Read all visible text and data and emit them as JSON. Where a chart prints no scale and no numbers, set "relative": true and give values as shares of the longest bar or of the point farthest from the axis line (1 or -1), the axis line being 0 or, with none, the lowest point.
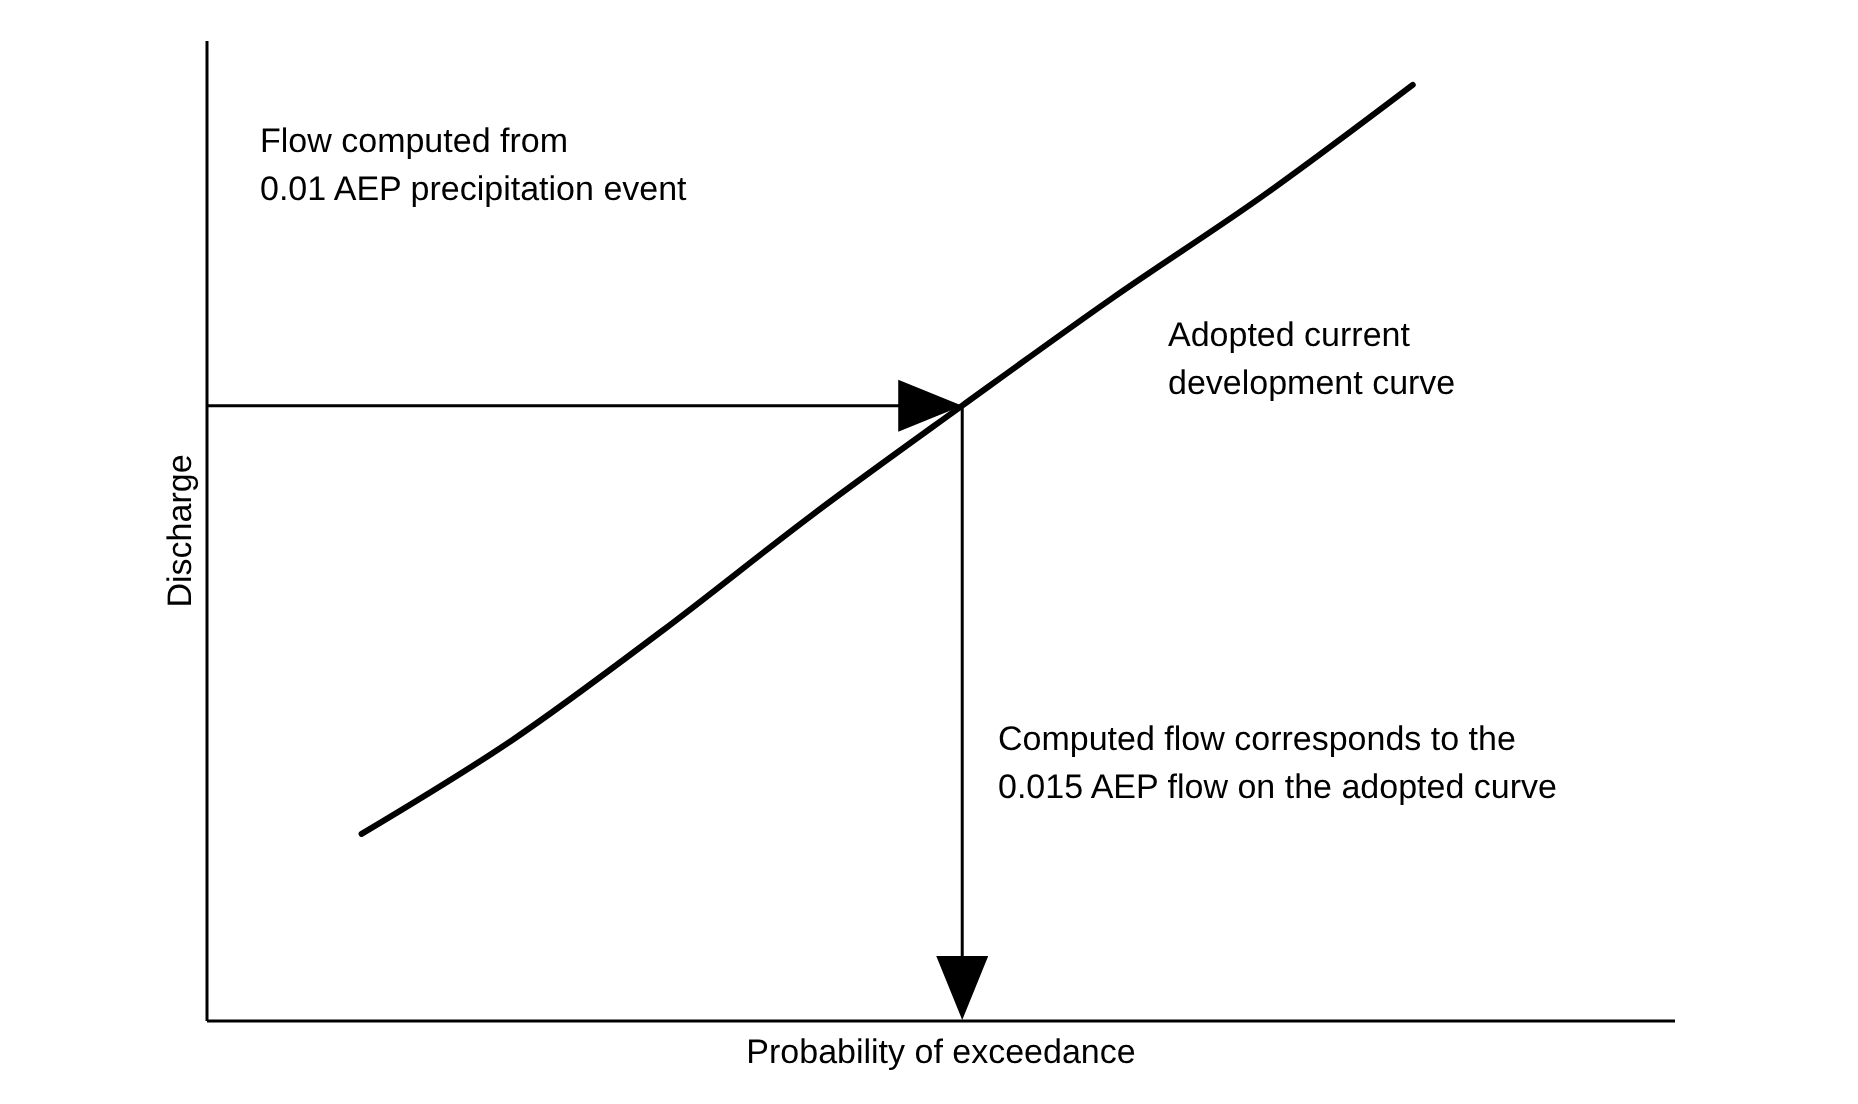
{
  "chart_data": {
    "type": "line",
    "relative": true,
    "xlabel": "Probability of exceedance",
    "ylabel": "Discharge",
    "categories": [
      null,
      null,
      null,
      null,
      null,
      null,
      null,
      null
    ],
    "series": [
      {
        "color": "#000000",
        "values": [
          0.199,
          0.299,
          0.416,
          0.54,
          0.657,
          0.772,
          0.881,
          1
        ]
      }
    ],
    "annotations": [
      "Flow computed from\n0.01 AEP precipitation event",
      "Adopted current\ndevelopment curve",
      "Computed flow corresponds to the\n0.015 AEP flow on the adopted curve"
    ]
  }
}
